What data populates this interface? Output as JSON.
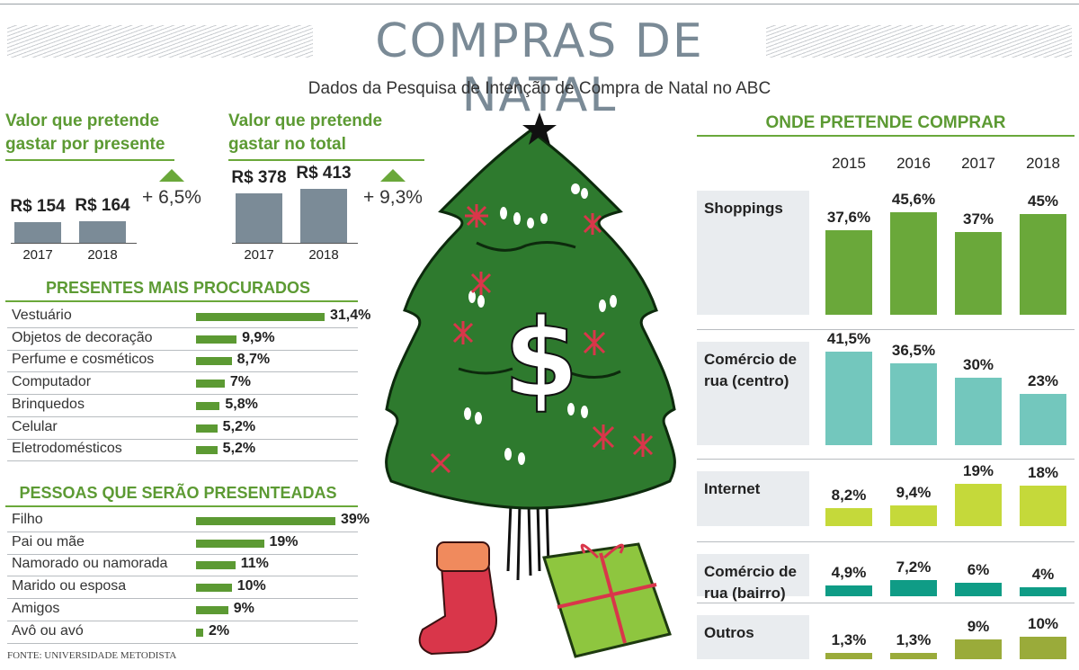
{
  "header": {
    "title": "COMPRAS DE NATAL",
    "subtitle": "Dados da Pesquisa de Intenção de Compra de Natal no ABC"
  },
  "per_gift": {
    "title_line1": "Valor que pretende",
    "title_line2": "gastar por presente",
    "bars": [
      {
        "year": "2017",
        "label": "R$ 154",
        "value": 154
      },
      {
        "year": "2018",
        "label": "R$ 164",
        "value": 164
      }
    ],
    "change": "+ 6,5%"
  },
  "total": {
    "title_line1": "Valor que pretende",
    "title_line2": "gastar no total",
    "bars": [
      {
        "year": "2017",
        "label": "R$ 378",
        "value": 378
      },
      {
        "year": "2018",
        "label": "R$ 413",
        "value": 413
      }
    ],
    "change": "+ 9,3%"
  },
  "gifts": {
    "title": "PRESENTES MAIS PROCURADOS",
    "rows": [
      {
        "label": "Vestuário",
        "value": 31.4,
        "text": "31,4%"
      },
      {
        "label": "Objetos de decoração",
        "value": 9.9,
        "text": "9,9%"
      },
      {
        "label": "Perfume e cosméticos",
        "value": 8.7,
        "text": "8,7%"
      },
      {
        "label": "Computador",
        "value": 7,
        "text": "7%"
      },
      {
        "label": "Brinquedos",
        "value": 5.8,
        "text": "5,8%"
      },
      {
        "label": "Celular",
        "value": 5.2,
        "text": "5,2%"
      },
      {
        "label": "Eletrodomésticos",
        "value": 5.2,
        "text": "5,2%"
      }
    ]
  },
  "people": {
    "title": "PESSOAS QUE SERÃO PRESENTEADAS",
    "rows": [
      {
        "label": "Filho",
        "value": 39,
        "text": "39%"
      },
      {
        "label": "Pai ou mãe",
        "value": 19,
        "text": "19%"
      },
      {
        "label": "Namorado ou namorada",
        "value": 11,
        "text": "11%"
      },
      {
        "label": "Marido ou esposa",
        "value": 10,
        "text": "10%"
      },
      {
        "label": "Amigos",
        "value": 9,
        "text": "9%"
      },
      {
        "label": "Avô ou avó",
        "value": 2,
        "text": "2%"
      }
    ]
  },
  "source": "FONTE: UNIVERSIDADE METODISTA",
  "where": {
    "title": "ONDE PRETENDE COMPRAR",
    "years": [
      "2015",
      "2016",
      "2017",
      "2018"
    ]
  },
  "colors": {
    "green": "#5c9a33",
    "grey_bar": "#7b8b97",
    "tree": "#2e7a2e",
    "shoppings": "#6aa83a",
    "centro": "#73c7bd",
    "internet": "#c5d93a",
    "bairro": "#0f9c86",
    "outros": "#9aab3a"
  },
  "chart_data": [
    {
      "type": "bar",
      "title": "Valor que pretende gastar por presente",
      "categories": [
        "2017",
        "2018"
      ],
      "values": [
        154,
        164
      ],
      "annotation": "+ 6,5%"
    },
    {
      "type": "bar",
      "title": "Valor que pretende gastar no total",
      "categories": [
        "2017",
        "2018"
      ],
      "values": [
        378,
        413
      ],
      "annotation": "+ 9,3%"
    },
    {
      "type": "bar",
      "title": "PRESENTES MAIS PROCURADOS",
      "categories": [
        "Vestuário",
        "Objetos de decoração",
        "Perfume e cosméticos",
        "Computador",
        "Brinquedos",
        "Celular",
        "Eletrodomésticos"
      ],
      "values": [
        31.4,
        9.9,
        8.7,
        7,
        5.8,
        5.2,
        5.2
      ]
    },
    {
      "type": "bar",
      "title": "PESSOAS QUE SERÃO PRESENTEADAS",
      "categories": [
        "Filho",
        "Pai ou mãe",
        "Namorado ou namorada",
        "Marido ou esposa",
        "Amigos",
        "Avô ou avó"
      ],
      "values": [
        39,
        19,
        11,
        10,
        9,
        2
      ]
    },
    {
      "type": "bar",
      "title": "ONDE PRETENDE COMPRAR",
      "x": [
        "2015",
        "2016",
        "2017",
        "2018"
      ],
      "series": [
        {
          "name": "Shoppings",
          "values": [
            37.6,
            45.6,
            37,
            45
          ],
          "labels": [
            "37,6%",
            "45,6%",
            "37%",
            "45%"
          ]
        },
        {
          "name": "Comércio de rua (centro)",
          "values": [
            41.5,
            36.5,
            30,
            23
          ],
          "labels": [
            "41,5%",
            "36,5%",
            "30%",
            "23%"
          ]
        },
        {
          "name": "Internet",
          "values": [
            8.2,
            9.4,
            19,
            18
          ],
          "labels": [
            "8,2%",
            "9,4%",
            "19%",
            "18%"
          ]
        },
        {
          "name": "Comércio de rua (bairro)",
          "values": [
            4.9,
            7.2,
            6,
            4
          ],
          "labels": [
            "4,9%",
            "7,2%",
            "6%",
            "4%"
          ]
        },
        {
          "name": "Outros",
          "values": [
            1.3,
            1.3,
            9,
            10
          ],
          "labels": [
            "1,3%",
            "1,3%",
            "9%",
            "10%"
          ]
        }
      ]
    }
  ]
}
